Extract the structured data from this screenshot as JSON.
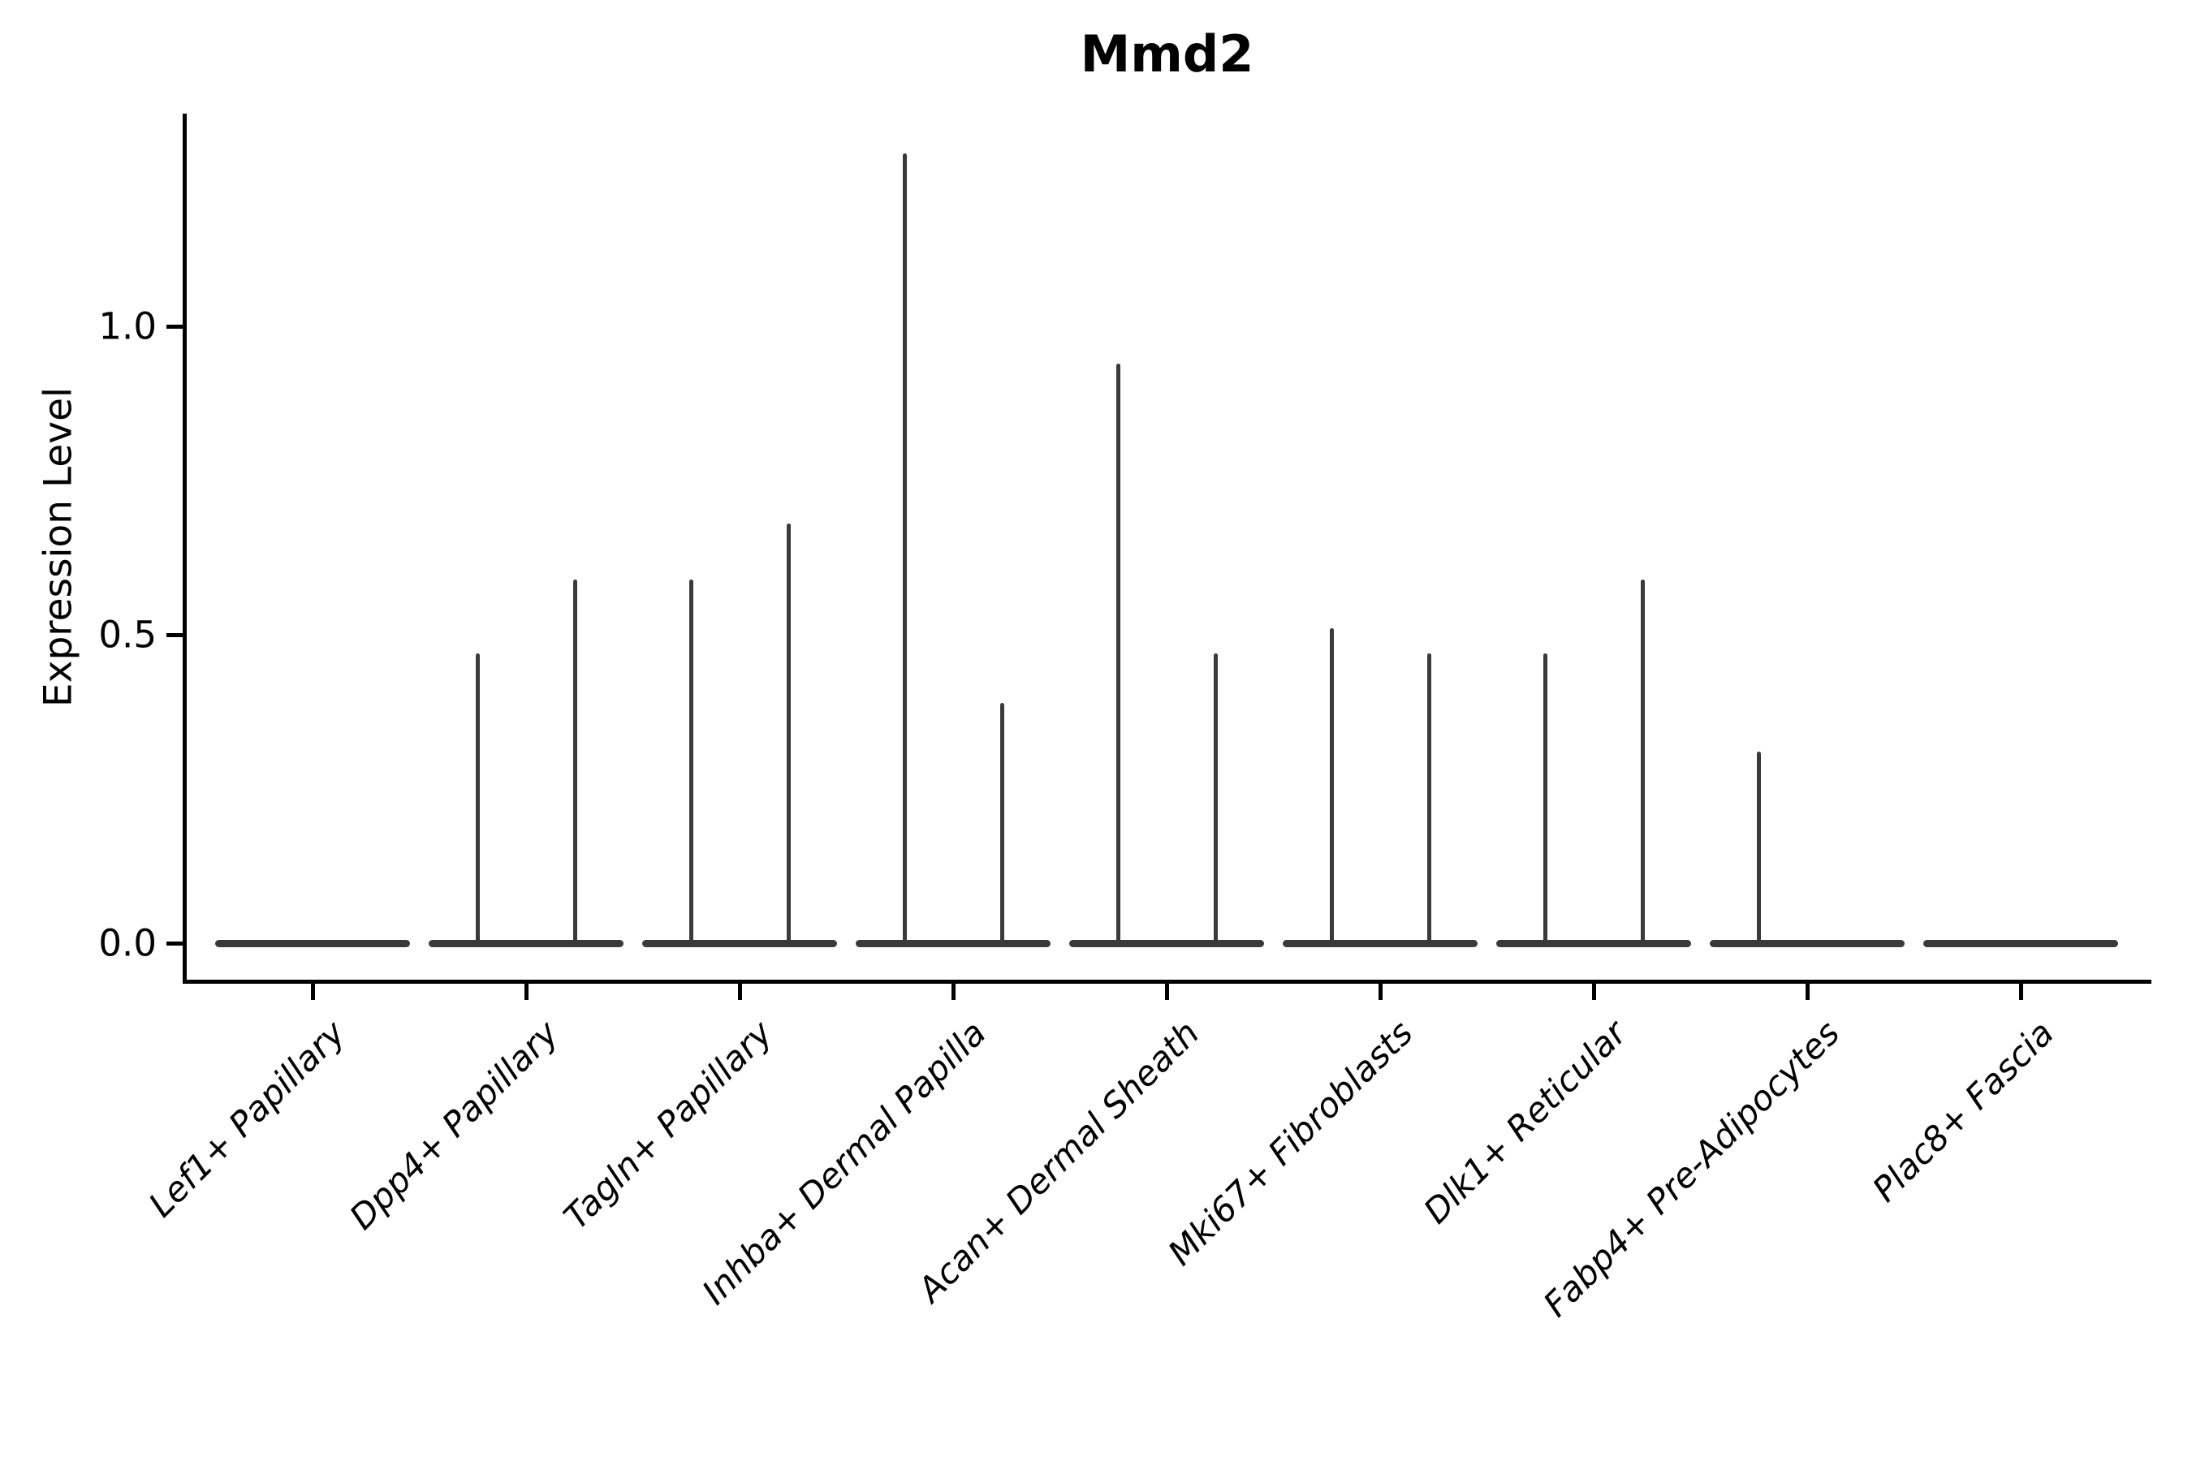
{
  "title": "Mmd2",
  "y_axis": {
    "label": "Expression Level",
    "tick_labels": [
      "0.0",
      "0.5",
      "1.0"
    ],
    "tick_values": [
      0.0,
      0.5,
      1.0
    ]
  },
  "chart_data": {
    "type": "violin",
    "title": "Mmd2",
    "xlabel": "",
    "ylabel": "Expression Level",
    "ylim": [
      0,
      1.35
    ],
    "yticks": [
      0.0,
      0.5,
      1.0
    ],
    "ytick_labels": [
      "0.0",
      "0.5",
      "1.0"
    ],
    "grid": "off",
    "legend": "none",
    "categories": [
      "Lef1+ Papillary",
      "Dpp4+ Papillary",
      "Tagln+ Papillary",
      "Inhba+ Dermal Papilla",
      "Acan+ Dermal Sheath",
      "Mki67+ Fibroblasts",
      "Dlk1+ Reticular",
      "Fabp4+ Pre-Adipocytes",
      "Plac8+ Fascia"
    ],
    "series": [
      {
        "name": "left-violin",
        "max_values": [
          0,
          0.47,
          0.59,
          1.28,
          0.94,
          0.51,
          0.47,
          0.31,
          0
        ]
      },
      {
        "name": "right-violin",
        "max_values": [
          0,
          0.59,
          0.68,
          0.39,
          0.47,
          0.47,
          0.59,
          0,
          0
        ]
      }
    ],
    "violin_shape_note": "Each category shows two narrow adjacent violins; density mass sits at 0 (flat dark band) with a thin vertical spike rising to the max expression value listed in series.",
    "colors": {
      "violin": "#3a3a3a",
      "axis": "#000000",
      "text": "#000000",
      "background": "#ffffff"
    }
  }
}
